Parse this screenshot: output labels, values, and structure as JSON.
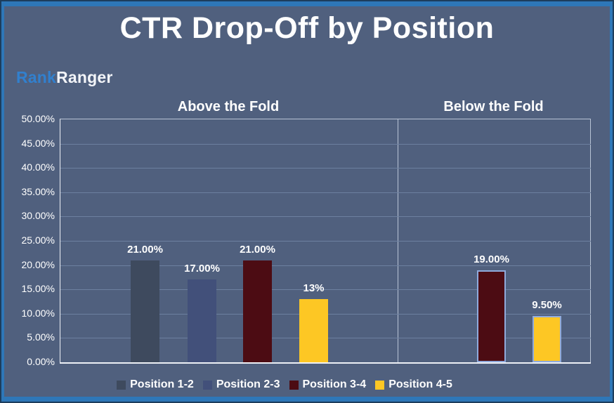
{
  "title": "CTR Drop-Off by Position",
  "logo": {
    "part1": "Rank",
    "part2": "Ranger"
  },
  "colors": {
    "background": "#50607e",
    "frame": "#2e77b8",
    "frame_edge": "#1d3d5c",
    "logo_blue": "#3180ce",
    "grid": "#6d80a0",
    "axis_strong": "#eef1f6",
    "axis_dim": "#b9c4d6",
    "bar_outline": "#8faadc",
    "text": "#ffffff"
  },
  "chart_data": {
    "type": "bar",
    "title": "CTR Drop-Off by Position",
    "ylim": [
      0,
      50
    ],
    "ytick_step": 5,
    "ytick_labels": [
      "0.00%",
      "5.00%",
      "10.00%",
      "15.00%",
      "20.00%",
      "25.00%",
      "30.00%",
      "35.00%",
      "40.00%",
      "45.00%",
      "50.00%"
    ],
    "grid": true,
    "legend_position": "bottom",
    "legend": [
      "Position 1-2",
      "Position 2-3",
      "Position 3-4",
      "Position 4-5"
    ],
    "series_colors": {
      "Position 1-2": "#3e4a5e",
      "Position 2-3": "#42507a",
      "Position 3-4": "#4c0c13",
      "Position 4-5": "#fdc724"
    },
    "groups": [
      {
        "label": "Above the Fold",
        "outlined": false,
        "bars": [
          {
            "series": "Position 1-2",
            "value": 21.0,
            "label": "21.00%"
          },
          {
            "series": "Position 2-3",
            "value": 17.0,
            "label": "17.00%"
          },
          {
            "series": "Position 3-4",
            "value": 21.0,
            "label": "21.00%"
          },
          {
            "series": "Position 4-5",
            "value": 13.0,
            "label": "13%"
          }
        ]
      },
      {
        "label": "Below the Fold",
        "outlined": true,
        "bars": [
          {
            "series": "Position 3-4",
            "value": 19.0,
            "label": "19.00%"
          },
          {
            "series": "Position 4-5",
            "value": 9.5,
            "label": "9.50%"
          }
        ]
      }
    ]
  }
}
